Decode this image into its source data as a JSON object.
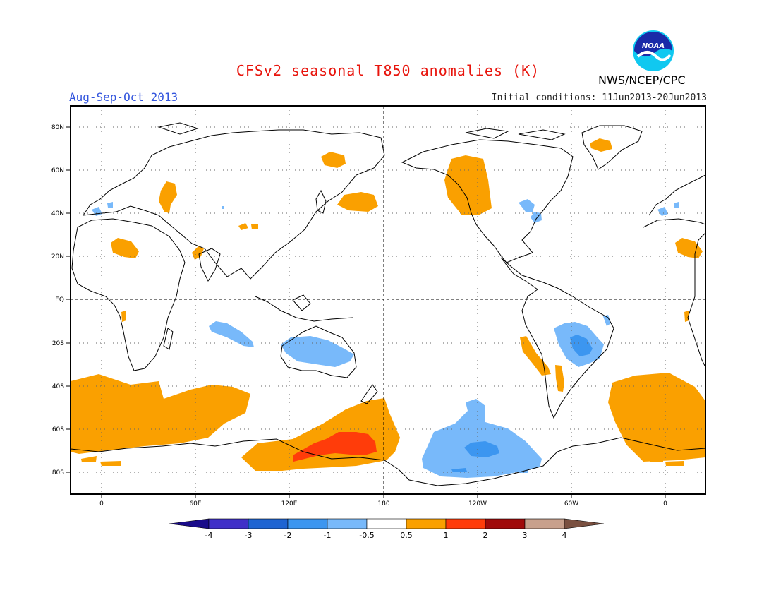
{
  "header": {
    "title": "CFSv2 seasonal T850 anomalies (K)",
    "season": "Aug-Sep-Oct 2013",
    "initial_conditions": "Initial conditions: 11Jun2013-20Jun2013",
    "agency": "NWS/NCEP/CPC",
    "logo_text": "NOAA"
  },
  "map": {
    "lat_labels": [
      "80N",
      "60N",
      "40N",
      "20N",
      "EQ",
      "20S",
      "40S",
      "60S",
      "80S"
    ],
    "lon_labels": [
      "0",
      "60E",
      "120E",
      "180",
      "120W",
      "60W",
      "0"
    ]
  },
  "legend": {
    "labels": [
      "-4",
      "-3",
      "-2",
      "-1",
      "-0.5",
      "0.5",
      "1",
      "2",
      "3",
      "4"
    ],
    "colors": [
      "#1a0c8a",
      "#4030c8",
      "#1e64d2",
      "#3c96f0",
      "#78b9fa",
      "#ffffff",
      "#faa000",
      "#ff3c0a",
      "#a00a0a",
      "#c8a08c",
      "#7a5040"
    ]
  }
}
